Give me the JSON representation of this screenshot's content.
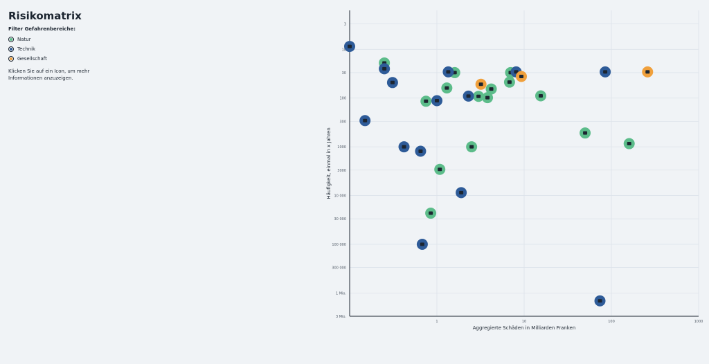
{
  "sidebar": {
    "title": "Risikomatrix",
    "filter_title": "Filter Gefahrenbereiche:",
    "filters": [
      {
        "label": "Natur",
        "color": "#5cbc8a"
      },
      {
        "label": "Technik",
        "color": "#2e5b98"
      },
      {
        "label": "Gesellschaft",
        "color": "#f0a03c"
      }
    ],
    "hint": "Klicken Sie auf ein Icon, um mehr Informationen anzuzeigen."
  },
  "chart_data": {
    "type": "scatter",
    "xlabel": "Aggregierte Schäden in Milliarden Franken",
    "ylabel": "Häufigkeit, einmal in x Jahren",
    "x_scale": "log",
    "y_scale": "log",
    "xlim": [
      0.1,
      1000
    ],
    "ylim": [
      1,
      3000000
    ],
    "x_ticks": [
      1,
      10,
      100,
      1000
    ],
    "x_tick_labels": [
      "1",
      "10",
      "100",
      "1000"
    ],
    "y_ticks": [
      3,
      10,
      30,
      100,
      300,
      1000,
      3000,
      10000,
      30000,
      100000,
      300000,
      1000000,
      3000000
    ],
    "y_tick_labels": [
      "3",
      "10",
      "30",
      "100",
      "300",
      "1000",
      "3000",
      "10 000",
      "30 000",
      "100 000",
      "300 000",
      "1 Mio.",
      "3 Mio."
    ],
    "grid": true,
    "series": [
      {
        "category": "Natur",
        "color": "#5cbc8a",
        "points": [
          [
            0.25,
            19
          ],
          [
            1.6,
            30
          ],
          [
            7,
            30
          ],
          [
            1.3,
            62
          ],
          [
            4.2,
            65
          ],
          [
            6.8,
            47
          ],
          [
            3,
            92
          ],
          [
            3.8,
            98
          ],
          [
            15.5,
            90
          ],
          [
            0.75,
            116
          ],
          [
            2.5,
            1000
          ],
          [
            1.08,
            2900
          ],
          [
            50,
            520
          ],
          [
            160,
            860
          ],
          [
            0.85,
            23000
          ]
        ]
      },
      {
        "category": "Technik",
        "color": "#2e5b98",
        "points": [
          [
            0.1,
            8.7
          ],
          [
            0.25,
            25
          ],
          [
            1.35,
            29
          ],
          [
            0.31,
            48
          ],
          [
            8.1,
            29
          ],
          [
            85,
            29
          ],
          [
            1,
            113
          ],
          [
            2.3,
            91
          ],
          [
            0.15,
            290
          ],
          [
            0.42,
            1000
          ],
          [
            0.65,
            1230
          ],
          [
            1.9,
            8700
          ],
          [
            0.68,
            100000
          ],
          [
            74,
            1450000
          ]
        ]
      },
      {
        "category": "Gesellschaft",
        "color": "#f0a03c",
        "points": [
          [
            3.2,
            52
          ],
          [
            9.3,
            36
          ],
          [
            260,
            29
          ]
        ]
      }
    ]
  }
}
